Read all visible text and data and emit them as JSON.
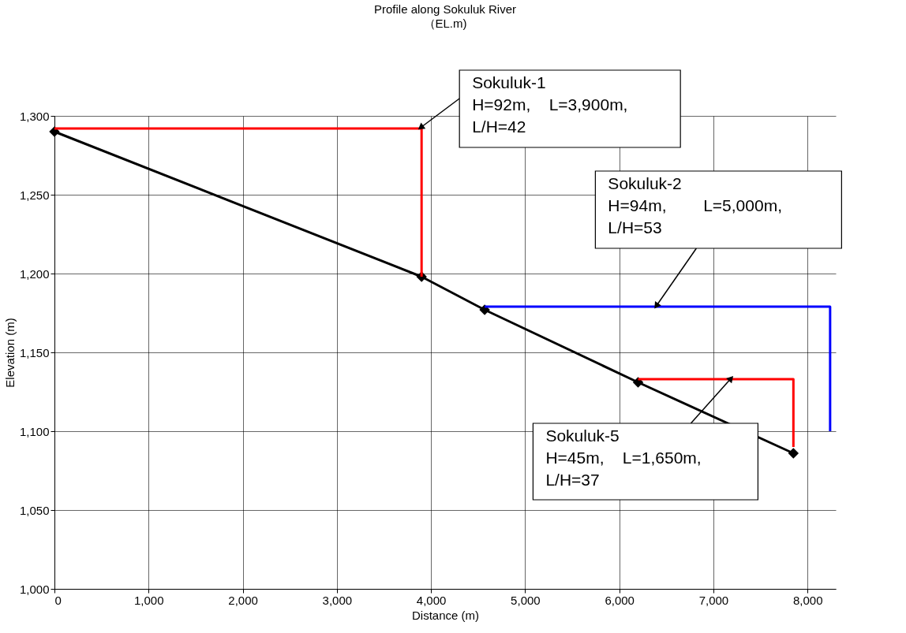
{
  "chart_data": {
    "type": "line",
    "title": "Profile along Sokuluk River",
    "subtitle": "（EL.m)",
    "xlabel": "Distance (m)",
    "ylabel": "Elevation (m)",
    "series": [
      {
        "color": "#000000",
        "marker": "diamond",
        "x": [
          0,
          3900,
          4570,
          6200,
          7850
        ],
        "values": [
          1290,
          1198,
          1177,
          1131,
          1086
        ]
      },
      {
        "color": "#ff0000",
        "marker": "none",
        "x": [
          0,
          3900,
          3900
        ],
        "values": [
          1292,
          1292,
          1198
        ]
      },
      {
        "color": "#0000ff",
        "marker": "none",
        "x": [
          4570,
          8240,
          8240
        ],
        "values": [
          1179,
          1179,
          1100
        ]
      },
      {
        "color": "#ff0000",
        "marker": "none",
        "x": [
          6200,
          7850,
          7850
        ],
        "values": [
          1133,
          1133,
          1090
        ]
      }
    ],
    "xlim": [
      0,
      8300
    ],
    "ylim": [
      1000,
      1300
    ],
    "xticks": [
      0,
      {
        "value": 1000,
        "label": "1,000"
      },
      {
        "value": 2000,
        "label": "2,000"
      },
      {
        "value": 3000,
        "label": "3,000"
      },
      {
        "value": 4000,
        "label": "4,000"
      },
      {
        "value": 5000,
        "label": "5,000"
      },
      {
        "value": 6000,
        "label": "6,000"
      },
      {
        "value": 7000,
        "label": "7,000"
      },
      {
        "value": 8000,
        "label": "8,000"
      }
    ],
    "yticks": [
      {
        "value": 1000,
        "label": "1,000"
      },
      {
        "value": 1050,
        "label": "1,050"
      },
      {
        "value": 1100,
        "label": "1,100"
      },
      {
        "value": 1150,
        "label": "1,150"
      },
      {
        "value": 1200,
        "label": "1,200"
      },
      {
        "value": 1250,
        "label": "1,250"
      },
      {
        "value": 1300,
        "label": "1,300"
      }
    ],
    "annotations": [
      {
        "text": "Sokuluk-1\nH=92m,    L=3,900m,\nL/H=42",
        "x": 3900,
        "y": 1293
      },
      {
        "text": "Sokuluk-2\nH=94m,        L=5,000m,\nL/H=53",
        "x": 6400,
        "y": 1180
      },
      {
        "text": "Sokuluk-5\nH=45m,    L=1,650m,\nL/H=37",
        "x": 7180,
        "y": 1133
      }
    ],
    "grid": true,
    "line_style": "solid"
  }
}
